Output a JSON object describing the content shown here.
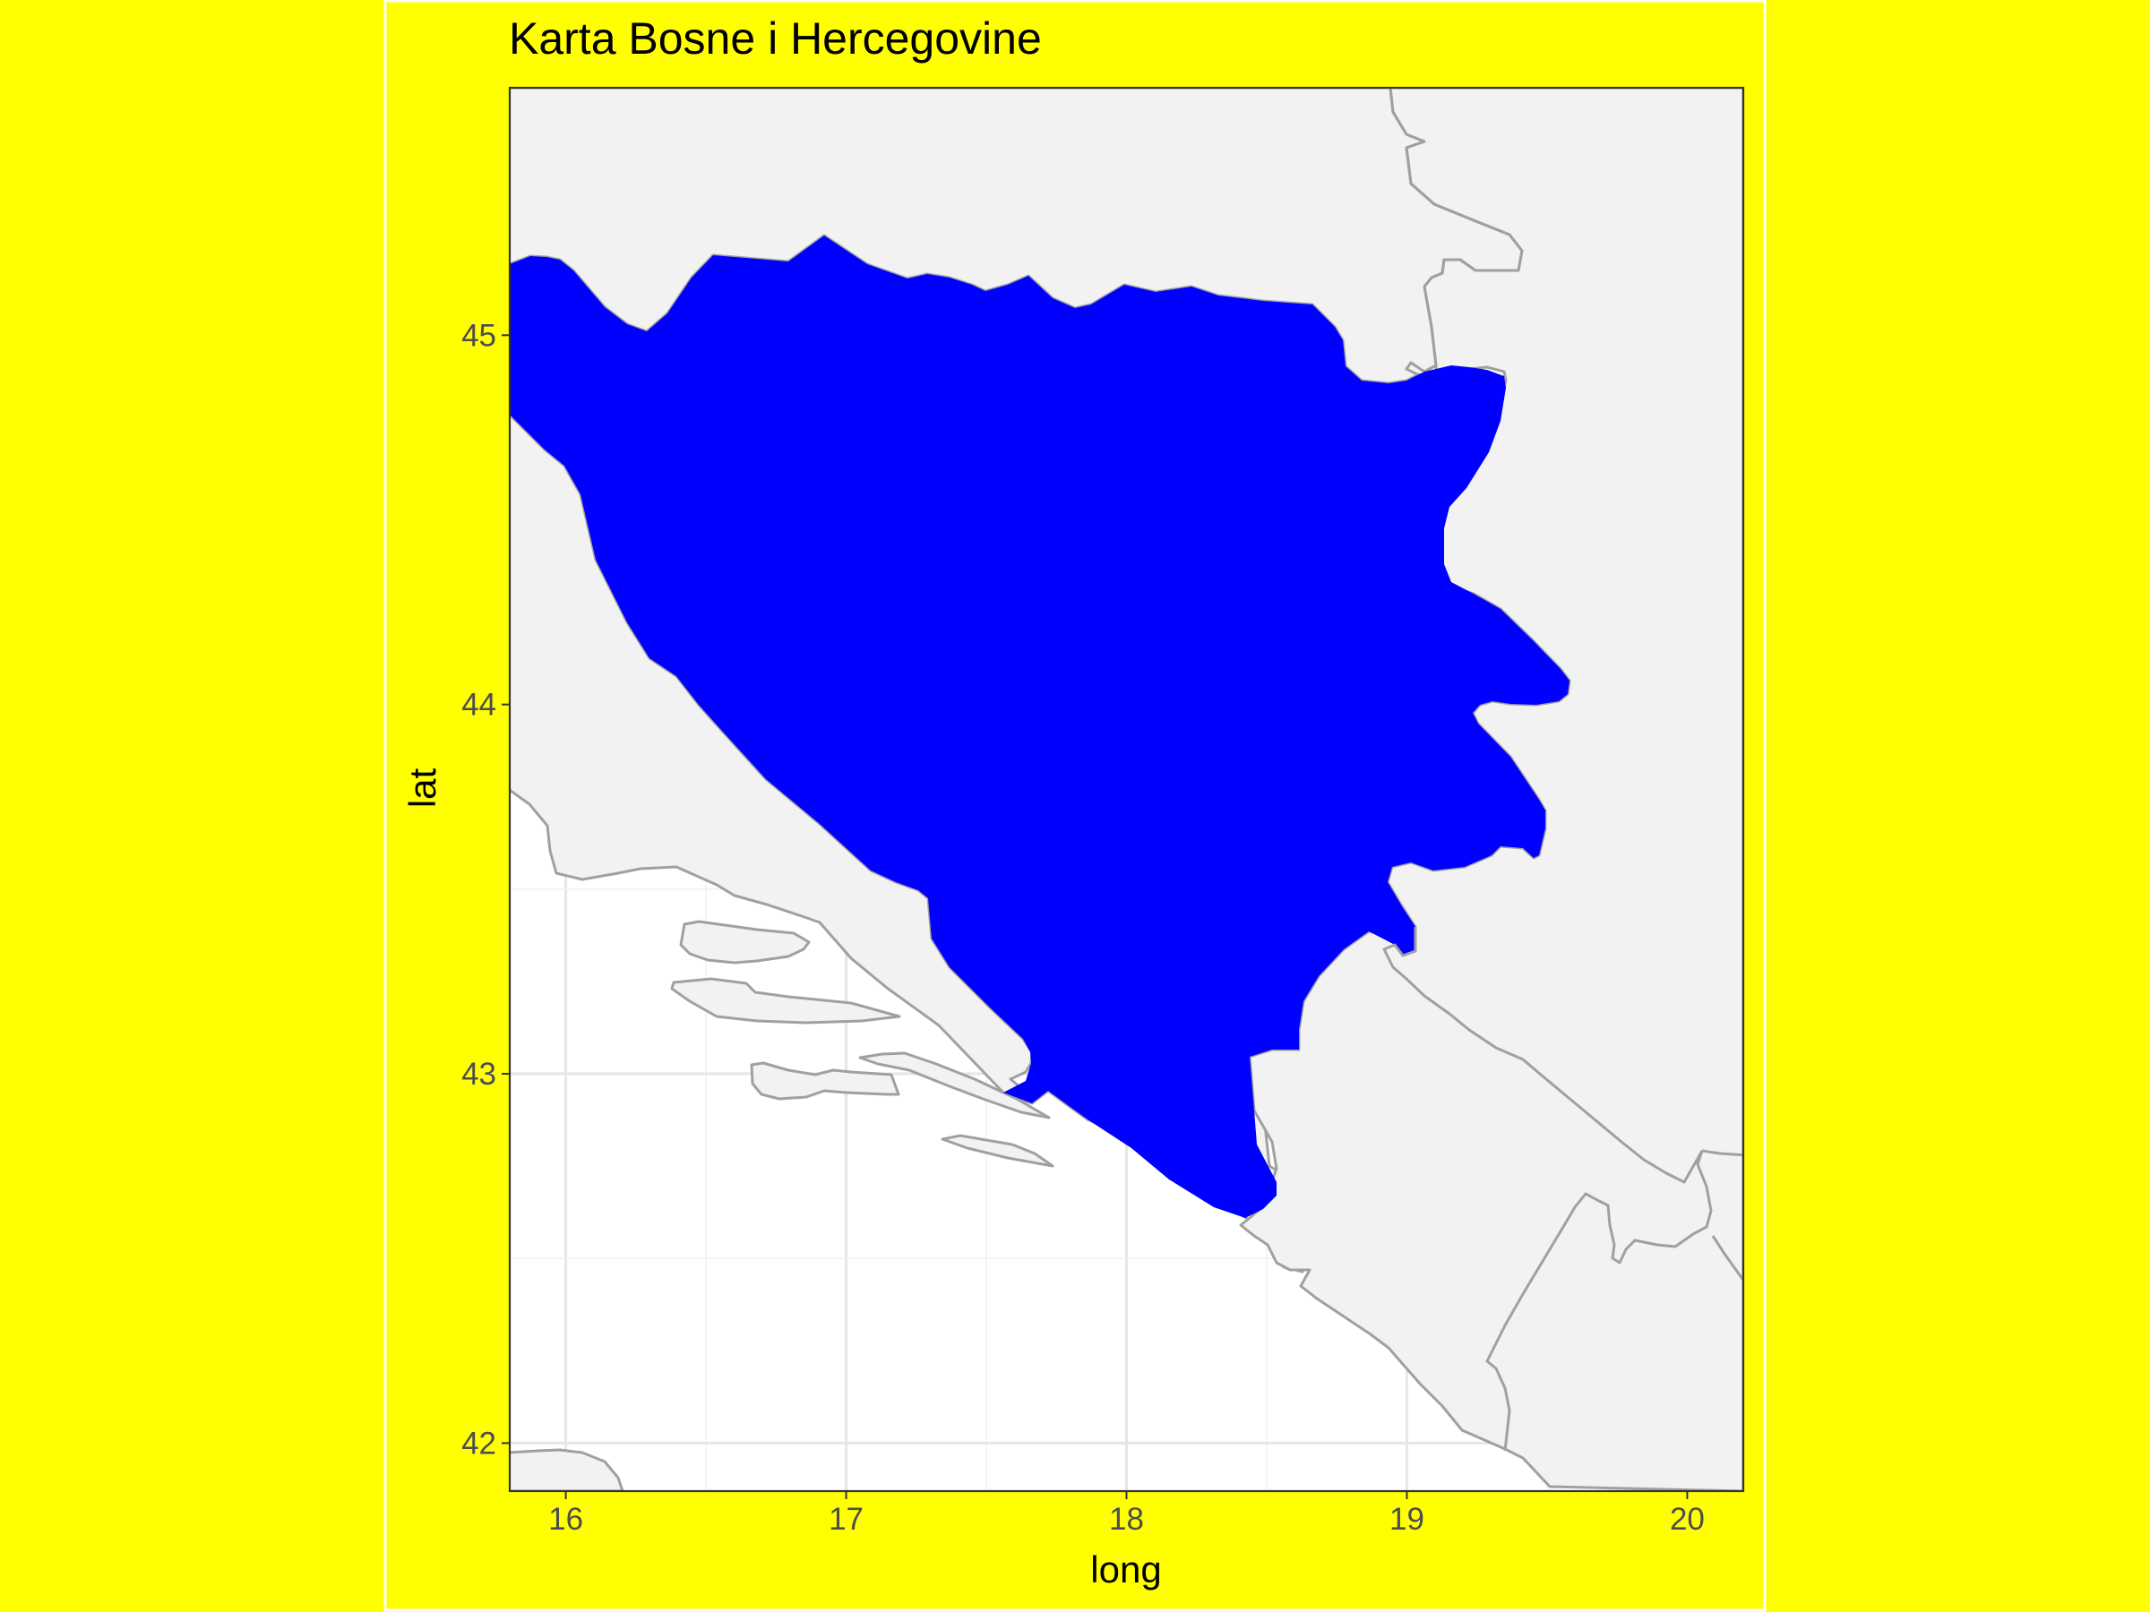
{
  "chart_data": {
    "type": "map",
    "title": "Karta Bosne i Hercegovine",
    "xlabel": "long",
    "ylabel": "lat",
    "xlim": [
      15.8,
      20.2
    ],
    "ylim": [
      41.87,
      45.67
    ],
    "x_ticks": [
      16,
      17,
      18,
      19,
      20
    ],
    "x_tick_labels": [
      "16",
      "17",
      "18",
      "19",
      "20"
    ],
    "y_ticks": [
      42,
      43,
      44,
      45
    ],
    "y_tick_labels": [
      "42",
      "43",
      "44",
      "45"
    ],
    "grid": true,
    "highlighted_region": {
      "name": "Bosnia and Herzegovina",
      "fill": "#0000ff"
    },
    "colors": {
      "page_background": "#ffff00",
      "panel_background": "#ffffff",
      "land_fill": "#f2f2f2",
      "border_stroke": "#a0a0a0",
      "grid_major": "#e6e6e6",
      "grid_minor": "#f1f1f1",
      "panel_border": "#333333",
      "highlight_fill": "#0000ff"
    }
  }
}
